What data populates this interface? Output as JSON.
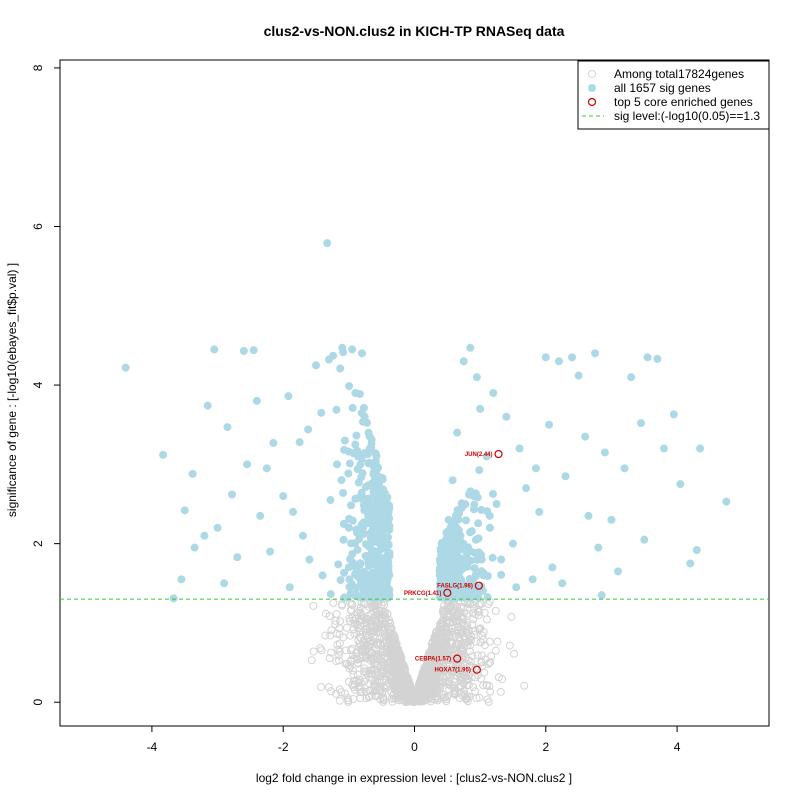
{
  "chart_data": {
    "type": "scatter",
    "title": "clus2-vs-NON.clus2 in KICH-TP RNASeq data",
    "xlabel": "log2 fold change in expression level : [clus2-vs-NON.clus2 ]",
    "ylabel": "significance of gene : [-log10(ebayes_fit$p.val) ]",
    "xlim": [
      -5.4,
      5.4
    ],
    "ylim": [
      -0.3,
      8.1
    ],
    "xticks": [
      -4,
      -2,
      0,
      2,
      4
    ],
    "yticks": [
      0,
      2,
      4,
      6,
      8
    ],
    "sig_level": 1.3,
    "colors": {
      "nonsig": "#d3d3d3",
      "sig": "#add8e6",
      "core": "#cc0000",
      "sigline": "#33cc33"
    },
    "legend": [
      {
        "kind": "nonsig",
        "label": "Among total17824genes"
      },
      {
        "kind": "sig",
        "label": "all 1657 sig genes"
      },
      {
        "kind": "core",
        "label": "top 5 core enriched genes"
      },
      {
        "kind": "line",
        "label": "sig level:(-log10(0.05)==1.3"
      }
    ],
    "core_genes": [
      {
        "label": "JUN(2.44)",
        "x": 1.28,
        "y": 3.13
      },
      {
        "label": "FASLG(1.98)",
        "x": 0.98,
        "y": 1.47
      },
      {
        "label": "PRKCG(1.41)",
        "x": 0.5,
        "y": 1.38
      },
      {
        "label": "CEBPA(1.57)",
        "x": 0.65,
        "y": 0.55
      },
      {
        "label": "HOXA7(1.95)",
        "x": 0.95,
        "y": 0.41
      }
    ],
    "sig_points": [
      [
        -4.4,
        4.22
      ],
      [
        -3.83,
        3.12
      ],
      [
        -3.67,
        1.31
      ],
      [
        -3.55,
        1.55
      ],
      [
        -3.5,
        2.42
      ],
      [
        -3.38,
        2.88
      ],
      [
        -3.35,
        1.95
      ],
      [
        -3.15,
        3.74
      ],
      [
        -3.05,
        4.45
      ],
      [
        -3.0,
        2.2
      ],
      [
        -2.85,
        3.47
      ],
      [
        -2.78,
        2.62
      ],
      [
        -2.7,
        1.83
      ],
      [
        -2.6,
        4.43
      ],
      [
        -2.55,
        3.0
      ],
      [
        -2.45,
        4.44
      ],
      [
        -2.4,
        3.8
      ],
      [
        -2.35,
        2.35
      ],
      [
        -2.2,
        1.9
      ],
      [
        -2.15,
        3.27
      ],
      [
        -2.0,
        2.6
      ],
      [
        -1.92,
        3.86
      ],
      [
        -1.85,
        2.4
      ],
      [
        -1.75,
        3.28
      ],
      [
        -1.7,
        2.1
      ],
      [
        -1.62,
        3.44
      ],
      [
        -1.5,
        4.25
      ],
      [
        -1.42,
        3.65
      ],
      [
        -1.33,
        5.79
      ],
      [
        -1.28,
        2.55
      ],
      [
        -1.24,
        4.37
      ],
      [
        -1.18,
        3.0
      ],
      [
        -1.1,
        4.47
      ],
      [
        -1.06,
        3.3
      ],
      [
        -1.0,
        2.2
      ],
      [
        -0.95,
        4.45
      ],
      [
        -0.9,
        3.9
      ],
      [
        -0.86,
        3.1
      ],
      [
        -0.82,
        2.6
      ],
      [
        -0.8,
        4.4
      ],
      [
        -0.76,
        3.6
      ],
      [
        -0.72,
        2.4
      ],
      [
        -0.68,
        3.2
      ],
      [
        -0.65,
        1.9
      ],
      [
        -0.62,
        2.9
      ],
      [
        -0.58,
        2.1
      ],
      [
        -0.55,
        1.7
      ],
      [
        -0.52,
        2.5
      ],
      [
        -0.5,
        1.5
      ],
      [
        -0.47,
        1.8
      ],
      [
        -0.44,
        1.4
      ],
      [
        -0.41,
        1.6
      ],
      [
        -0.4,
        1.32
      ],
      [
        -1.4,
        1.6
      ],
      [
        -1.6,
        1.8
      ],
      [
        -2.9,
        1.5
      ],
      [
        -3.2,
        2.1
      ],
      [
        -2.25,
        2.95
      ],
      [
        -1.9,
        1.45
      ],
      [
        -1.0,
        1.7
      ],
      [
        -0.78,
        1.45
      ],
      [
        -0.6,
        1.35
      ],
      [
        0.45,
        1.38
      ],
      [
        0.48,
        1.8
      ],
      [
        0.52,
        2.3
      ],
      [
        0.55,
        1.55
      ],
      [
        0.58,
        2.8
      ],
      [
        0.62,
        1.7
      ],
      [
        0.65,
        3.4
      ],
      [
        0.7,
        2.1
      ],
      [
        0.75,
        4.3
      ],
      [
        0.8,
        1.9
      ],
      [
        0.85,
        4.47
      ],
      [
        0.9,
        2.6
      ],
      [
        0.95,
        4.1
      ],
      [
        1.0,
        3.7
      ],
      [
        1.05,
        1.6
      ],
      [
        1.1,
        3.1
      ],
      [
        1.15,
        2.2
      ],
      [
        1.2,
        3.9
      ],
      [
        1.25,
        2.5
      ],
      [
        1.32,
        1.8
      ],
      [
        1.4,
        3.6
      ],
      [
        1.5,
        2.0
      ],
      [
        1.6,
        3.2
      ],
      [
        1.7,
        2.7
      ],
      [
        1.8,
        1.55
      ],
      [
        1.9,
        2.4
      ],
      [
        2.0,
        4.35
      ],
      [
        2.05,
        3.5
      ],
      [
        2.1,
        1.7
      ],
      [
        2.2,
        4.3
      ],
      [
        2.3,
        2.85
      ],
      [
        2.4,
        4.35
      ],
      [
        2.5,
        4.12
      ],
      [
        2.6,
        3.35
      ],
      [
        2.65,
        2.35
      ],
      [
        2.75,
        4.4
      ],
      [
        2.85,
        1.35
      ],
      [
        2.9,
        3.15
      ],
      [
        3.0,
        2.3
      ],
      [
        3.1,
        1.65
      ],
      [
        3.2,
        2.95
      ],
      [
        3.3,
        4.1
      ],
      [
        3.45,
        3.52
      ],
      [
        3.55,
        4.35
      ],
      [
        3.7,
        4.33
      ],
      [
        3.8,
        3.2
      ],
      [
        3.95,
        3.63
      ],
      [
        4.05,
        2.75
      ],
      [
        4.2,
        1.75
      ],
      [
        4.3,
        1.92
      ],
      [
        4.35,
        3.2
      ],
      [
        4.75,
        2.53
      ],
      [
        3.5,
        2.05
      ],
      [
        2.8,
        1.95
      ],
      [
        1.55,
        1.45
      ],
      [
        2.25,
        1.5
      ],
      [
        1.85,
        2.95
      ],
      [
        0.72,
        1.45
      ],
      [
        0.42,
        1.55
      ]
    ]
  }
}
